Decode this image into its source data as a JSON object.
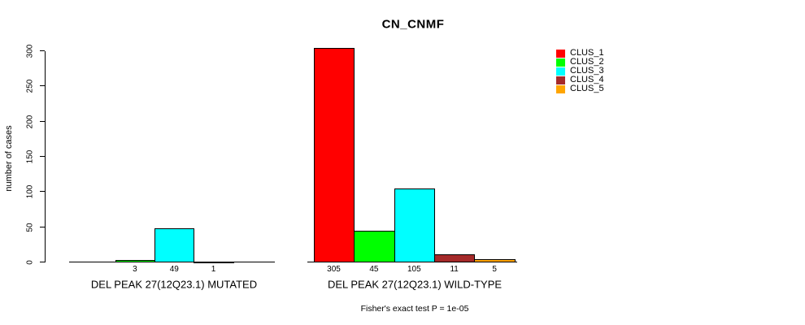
{
  "chart_data": {
    "type": "bar",
    "title": "CN_CNMF",
    "ylabel": "number of cases",
    "ylim": [
      0,
      300
    ],
    "yticks": [
      0,
      50,
      100,
      150,
      200,
      250,
      300
    ],
    "grid": false,
    "legend_position": "right",
    "clusters": [
      {
        "name": "CLUS_1",
        "color": "#FF0000"
      },
      {
        "name": "CLUS_2",
        "color": "#00FF00"
      },
      {
        "name": "CLUS_3",
        "color": "#00FFFF"
      },
      {
        "name": "CLUS_4",
        "color": "#A52A2A"
      },
      {
        "name": "CLUS_5",
        "color": "#FFA500"
      }
    ],
    "groups": [
      {
        "label": "DEL PEAK 27(12Q23.1) MUTATED",
        "bars": [
          {
            "cluster": "CLUS_2",
            "value": 3
          },
          {
            "cluster": "CLUS_3",
            "value": 49
          },
          {
            "cluster": "CLUS_4",
            "value": 1
          }
        ]
      },
      {
        "label": "DEL PEAK 27(12Q23.1) WILD-TYPE",
        "bars": [
          {
            "cluster": "CLUS_1",
            "value": 305
          },
          {
            "cluster": "CLUS_2",
            "value": 45
          },
          {
            "cluster": "CLUS_3",
            "value": 105
          },
          {
            "cluster": "CLUS_4",
            "value": 11
          },
          {
            "cluster": "CLUS_5",
            "value": 5
          }
        ]
      }
    ],
    "annotation": "Fisher's exact test P = 1e-05"
  }
}
